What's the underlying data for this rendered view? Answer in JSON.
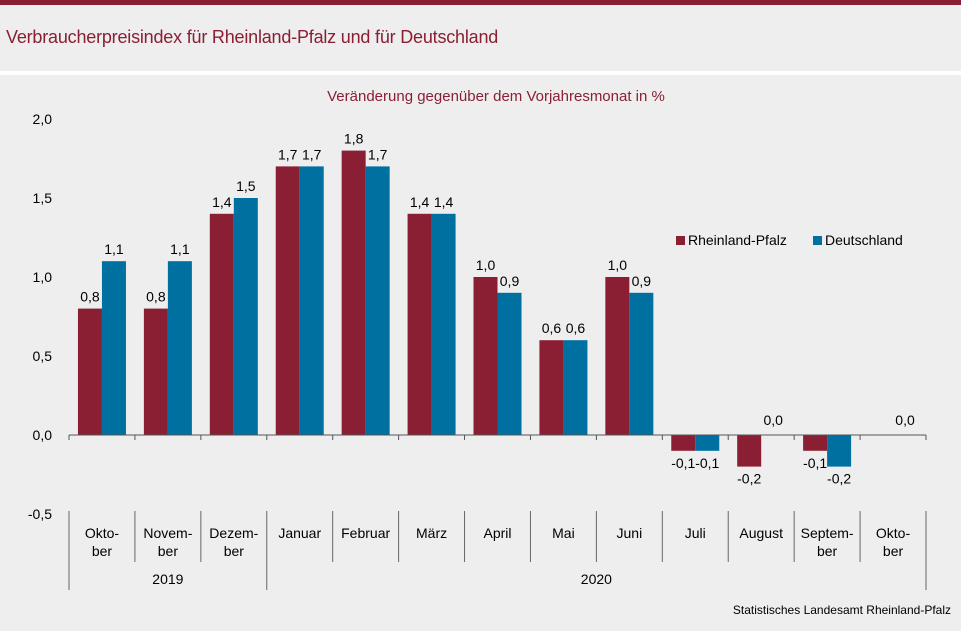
{
  "header": {
    "title": "Verbraucherpreisindex für Rheinland-Pfalz und für Deutschland"
  },
  "footer": {
    "source": "Statistisches Landesamt Rheinland-Pfalz"
  },
  "colors": {
    "rheinland_pfalz": "#8a1f33",
    "deutschland": "#0070a0",
    "accent": "#8a1f33",
    "background": "#eeeeee"
  },
  "chart_data": {
    "type": "bar",
    "subtitle": "Veränderung gegenüber dem Vorjahresmonat in %",
    "categories": [
      [
        "Okto-",
        "ber"
      ],
      [
        "Novem-",
        "ber"
      ],
      [
        "Dezem-",
        "ber"
      ],
      [
        "Januar"
      ],
      [
        "Februar"
      ],
      [
        "März"
      ],
      [
        "April"
      ],
      [
        "Mai"
      ],
      [
        "Juni"
      ],
      [
        "Juli"
      ],
      [
        "August"
      ],
      [
        "Septem-",
        "ber"
      ],
      [
        "Okto-",
        "ber"
      ]
    ],
    "years": [
      {
        "label": "2019",
        "from": 0,
        "to": 2
      },
      {
        "label": "2020",
        "from": 3,
        "to": 12
      }
    ],
    "series": [
      {
        "name": "Rheinland-Pfalz",
        "values": [
          0.8,
          0.8,
          1.4,
          1.7,
          1.8,
          1.4,
          1.0,
          0.6,
          1.0,
          -0.1,
          -0.2,
          -0.1,
          0.0
        ],
        "labels": [
          "0,8",
          "0,8",
          "1,4",
          "1,7",
          "1,8",
          "1,4",
          "1,0",
          "0,6",
          "1,0",
          "-0,1",
          "-0,2",
          "-0,1",
          ""
        ]
      },
      {
        "name": "Deutschland",
        "values": [
          1.1,
          1.1,
          1.5,
          1.7,
          1.7,
          1.4,
          0.9,
          0.6,
          0.9,
          -0.1,
          0.0,
          -0.2,
          0.0
        ],
        "labels": [
          "1,1",
          "1,1",
          "1,5",
          "1,7",
          "1,7",
          "1,4",
          "0,9",
          "0,6",
          "0,9",
          "-0,1",
          "",
          "-0,2",
          ""
        ]
      }
    ],
    "zero_labels": [
      {
        "index": 10,
        "text": "0,0"
      },
      {
        "index": 12,
        "text": "0,0"
      }
    ],
    "ylim": [
      -0.5,
      2.0
    ],
    "yticks": [
      -0.5,
      0.0,
      0.5,
      1.0,
      1.5,
      2.0
    ],
    "ytick_labels": [
      "-0,5",
      "0,0",
      "0,5",
      "1,0",
      "1,5",
      "2,0"
    ],
    "grid": false,
    "legend": "right"
  }
}
